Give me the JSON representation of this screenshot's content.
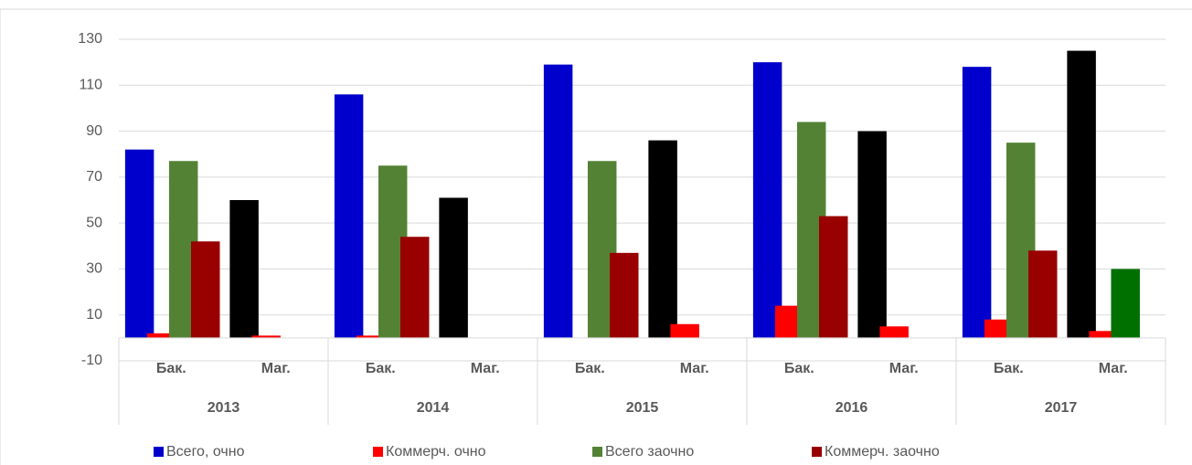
{
  "chart_data": {
    "type": "bar",
    "groups": [
      "2013",
      "2014",
      "2015",
      "2016",
      "2017"
    ],
    "categories": [
      "Бак.",
      "Маг.",
      "Бак.",
      "Маг.",
      "Бак.",
      "Маг.",
      "Бак.",
      "Маг.",
      "Бак.",
      "Маг."
    ],
    "series": [
      {
        "name": "Всего, очно",
        "color": "#0000cc",
        "colors": [
          "#0000cc",
          "#000000",
          "#0000cc",
          "#000000",
          "#0000cc",
          "#000000",
          "#0000cc",
          "#000000",
          "#0000cc",
          "#000000"
        ],
        "values": [
          82,
          60,
          106,
          61,
          119,
          86,
          120,
          90,
          118,
          125
        ]
      },
      {
        "name": "Коммерч. очно",
        "color": "#ff0000",
        "colors": [
          "#ff0000",
          "#ff0000",
          "#ff0000",
          "#ff0000",
          "#ff0000",
          "#ff0000",
          "#ff0000",
          "#ff0000",
          "#ff0000",
          "#ff0000"
        ],
        "values": [
          2,
          1,
          1,
          null,
          null,
          6,
          14,
          5,
          8,
          3
        ]
      },
      {
        "name": "Всего заочно",
        "color": "#548235",
        "colors": [
          "#548235",
          "#548235",
          "#548235",
          "#548235",
          "#548235",
          "#548235",
          "#548235",
          "#548235",
          "#548235",
          "#007000"
        ],
        "values": [
          77,
          null,
          75,
          null,
          77,
          null,
          94,
          null,
          85,
          30
        ]
      },
      {
        "name": "Коммерч. заочно",
        "color": "#990000",
        "colors": [
          "#990000",
          "#990000",
          "#990000",
          "#990000",
          "#990000",
          "#990000",
          "#990000",
          "#990000",
          "#990000",
          "#990000"
        ],
        "values": [
          42,
          null,
          44,
          null,
          37,
          null,
          53,
          null,
          38,
          null
        ]
      }
    ],
    "ylim": [
      -10,
      130
    ],
    "yticks": [
      -10,
      10,
      30,
      50,
      70,
      90,
      110,
      130
    ],
    "grid": true,
    "legend": "bottom"
  }
}
